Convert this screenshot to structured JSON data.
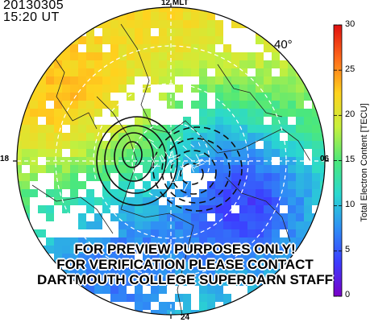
{
  "header": {
    "date": "20130305",
    "time": "15:20 UT"
  },
  "mlt_labels": {
    "top": "12 MLT",
    "bottom": "24",
    "left": "18",
    "right": "06"
  },
  "latitude_label": "40°",
  "colorbar": {
    "label": "Total Electron Content [TECU]",
    "ticks": [
      "30",
      "25",
      "20",
      "15",
      "10",
      "5",
      "0"
    ],
    "min": 0,
    "max": 30,
    "colors": [
      "#7a00c8",
      "#3c3cff",
      "#2f8ef5",
      "#2ad8d0",
      "#4ce87a",
      "#c8f03c",
      "#ffd21e",
      "#ff6b1a",
      "#e01010"
    ]
  },
  "watermark": {
    "line1": "FOR PREVIEW PURPOSES ONLY!",
    "line2": "FOR VERIFICATION PLEASE CONTACT",
    "line3": "DARTMOUTH COLLEGE SUPERDARN STAFF"
  },
  "map": {
    "grid_circles": "dashed",
    "projection": "polar MLT",
    "contours": "convection potential"
  }
}
